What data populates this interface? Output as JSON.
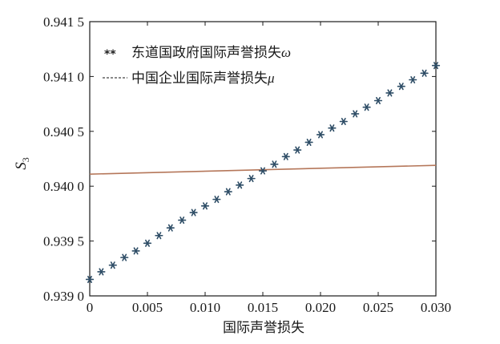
{
  "chart_data": {
    "type": "line",
    "xlabel": "国际声誉损失",
    "ylabel": "S",
    "ylabel_sub": "3",
    "xlim": [
      0,
      0.03
    ],
    "ylim": [
      0.939,
      0.9415
    ],
    "x_ticks": [
      0,
      0.005,
      0.01,
      0.015,
      0.02,
      0.025,
      0.03
    ],
    "x_tick_labels": [
      "0",
      "0.005",
      "0.010",
      "0.015",
      "0.020",
      "0.025",
      "0.030"
    ],
    "y_ticks": [
      0.939,
      0.9395,
      0.94,
      0.9405,
      0.941,
      0.9415
    ],
    "y_tick_labels": [
      "0.939 0",
      "0.939 5",
      "0.940 0",
      "0.940 5",
      "0.941 0",
      "0.941 5"
    ],
    "legend_position": "top-left",
    "grid": false,
    "series": [
      {
        "name": "东道国政府国际声誉损失",
        "symbol": "ω",
        "style": "markers",
        "marker": "**",
        "color": "#2e4d66",
        "x": [
          0,
          0.001,
          0.002,
          0.003,
          0.004,
          0.005,
          0.006,
          0.007,
          0.008,
          0.009,
          0.01,
          0.011,
          0.012,
          0.013,
          0.014,
          0.015,
          0.016,
          0.017,
          0.018,
          0.019,
          0.02,
          0.021,
          0.022,
          0.023,
          0.024,
          0.025,
          0.026,
          0.027,
          0.028,
          0.029,
          0.03
        ],
        "y": [
          0.93915,
          0.93922,
          0.93928,
          0.93935,
          0.93941,
          0.93948,
          0.93955,
          0.93962,
          0.93969,
          0.93976,
          0.93982,
          0.93988,
          0.93995,
          0.94001,
          0.94007,
          0.94014,
          0.9402,
          0.94027,
          0.94033,
          0.9404,
          0.94047,
          0.94053,
          0.94059,
          0.94066,
          0.94072,
          0.94078,
          0.94085,
          0.94091,
          0.94097,
          0.94103,
          0.9411
        ]
      },
      {
        "name": "中国企业国际声誉损失",
        "symbol": "μ",
        "style": "line",
        "color": "#b5775a",
        "x": [
          0,
          0.03
        ],
        "y": [
          0.94011,
          0.94019
        ]
      }
    ]
  }
}
